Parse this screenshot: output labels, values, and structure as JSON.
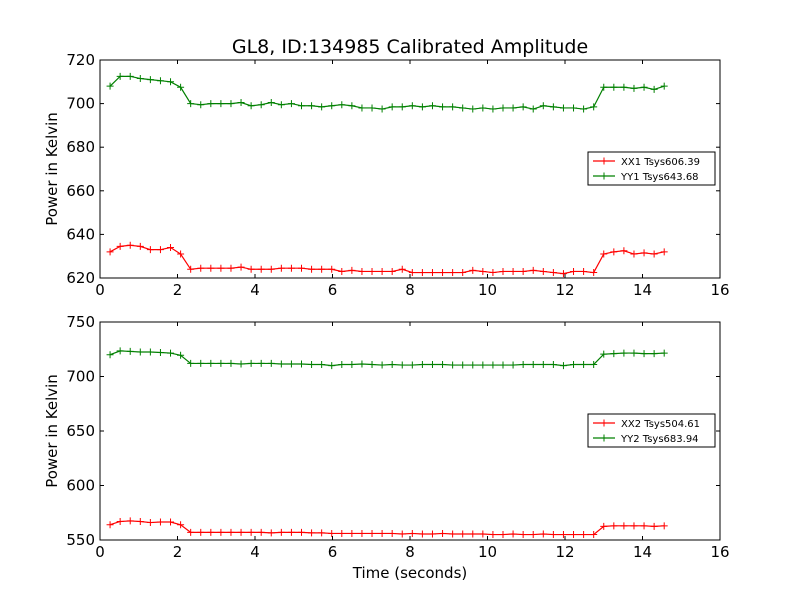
{
  "figure": {
    "title": "GL8, ID:134985 Calibrated Amplitude",
    "xlabel": "Time (seconds)"
  },
  "chart_data": [
    {
      "type": "line",
      "title": "GL8, ID:134985 Calibrated Amplitude",
      "xlabel": "",
      "ylabel": "Power in Kelvin",
      "xlim": [
        0,
        16
      ],
      "ylim": [
        620,
        720
      ],
      "xticks": [
        0,
        2,
        4,
        6,
        8,
        10,
        12,
        14,
        16
      ],
      "yticks": [
        620,
        640,
        660,
        680,
        700,
        720
      ],
      "legend_position": "right",
      "grid": false,
      "x": [
        0.26,
        0.52,
        0.78,
        1.04,
        1.3,
        1.56,
        1.82,
        2.08,
        2.34,
        2.6,
        2.86,
        3.12,
        3.38,
        3.64,
        3.9,
        4.16,
        4.42,
        4.68,
        4.94,
        5.2,
        5.46,
        5.72,
        5.98,
        6.24,
        6.5,
        6.76,
        7.02,
        7.28,
        7.54,
        7.8,
        8.06,
        8.32,
        8.58,
        8.84,
        9.1,
        9.36,
        9.62,
        9.88,
        10.14,
        10.4,
        10.66,
        10.92,
        11.18,
        11.44,
        11.7,
        11.96,
        12.22,
        12.48,
        12.74,
        13.0,
        13.26,
        13.52,
        13.78,
        14.04,
        14.3,
        14.56
      ],
      "series": [
        {
          "name": "XX1 Tsys606.39",
          "color": "#ff0000",
          "values": [
            632,
            634.5,
            635,
            634.5,
            633,
            633,
            634,
            631,
            624,
            624.5,
            624.5,
            624.5,
            624.5,
            625,
            624,
            624,
            624,
            624.5,
            624.5,
            624.5,
            624,
            624,
            624,
            623,
            623.5,
            623,
            623,
            623,
            623,
            624,
            622.5,
            622.5,
            622.5,
            622.5,
            622.5,
            622.5,
            623.5,
            623,
            622.5,
            623,
            623,
            623,
            623.5,
            623,
            622.5,
            622,
            623,
            623,
            622.5,
            631,
            632,
            632.5,
            631,
            631.5,
            631,
            632
          ]
        },
        {
          "name": "YY1 Tsys643.68",
          "color": "#008000",
          "values": [
            708,
            712.5,
            712.5,
            711.5,
            711,
            710.5,
            710,
            707.5,
            700,
            699.5,
            700,
            700,
            700,
            700.5,
            699,
            699.5,
            700.5,
            699.5,
            700,
            699,
            699,
            698.5,
            699,
            699.5,
            699,
            698,
            698,
            697.5,
            698.5,
            698.5,
            699,
            698.5,
            699,
            698.5,
            698.5,
            698,
            697.5,
            698,
            697.5,
            698,
            698,
            698.5,
            697.5,
            699,
            698.5,
            698,
            698,
            697.5,
            698.5,
            707.5,
            707.5,
            707.5,
            707,
            707.5,
            706.5,
            708
          ]
        }
      ]
    },
    {
      "type": "line",
      "title": "",
      "xlabel": "Time (seconds)",
      "ylabel": "Power in Kelvin",
      "xlim": [
        0,
        16
      ],
      "ylim": [
        550,
        750
      ],
      "xticks": [
        0,
        2,
        4,
        6,
        8,
        10,
        12,
        14,
        16
      ],
      "yticks": [
        550,
        600,
        650,
        700,
        750
      ],
      "legend_position": "right",
      "grid": false,
      "x": [
        0.26,
        0.52,
        0.78,
        1.04,
        1.3,
        1.56,
        1.82,
        2.08,
        2.34,
        2.6,
        2.86,
        3.12,
        3.38,
        3.64,
        3.9,
        4.16,
        4.42,
        4.68,
        4.94,
        5.2,
        5.46,
        5.72,
        5.98,
        6.24,
        6.5,
        6.76,
        7.02,
        7.28,
        7.54,
        7.8,
        8.06,
        8.32,
        8.58,
        8.84,
        9.1,
        9.36,
        9.62,
        9.88,
        10.14,
        10.4,
        10.66,
        10.92,
        11.18,
        11.44,
        11.7,
        11.96,
        12.22,
        12.48,
        12.74,
        13.0,
        13.26,
        13.52,
        13.78,
        14.04,
        14.3,
        14.56
      ],
      "series": [
        {
          "name": "XX2 Tsys504.61",
          "color": "#ff0000",
          "values": [
            564,
            567,
            567.5,
            567,
            566,
            566.5,
            566.5,
            564,
            557,
            557,
            557,
            557,
            557,
            557,
            557,
            557,
            556.5,
            557,
            557,
            557,
            556.5,
            556.5,
            556,
            556,
            556,
            556,
            556,
            556,
            556,
            555.5,
            556,
            555.5,
            555.5,
            556,
            555.5,
            555.5,
            555.5,
            555.5,
            555,
            555,
            555.5,
            555,
            555,
            555.5,
            555,
            555,
            555,
            555,
            555,
            562.5,
            563,
            563,
            563,
            563,
            562.5,
            563
          ]
        },
        {
          "name": "YY2 Tsys683.94",
          "color": "#008000",
          "values": [
            720,
            723.5,
            723,
            722.5,
            722.5,
            722,
            721.5,
            719.5,
            712,
            712,
            712,
            712,
            712,
            711.5,
            712,
            712,
            712,
            711.5,
            711.5,
            711.5,
            711,
            711,
            710,
            711,
            711,
            711.5,
            711,
            710.5,
            711,
            710.5,
            710.5,
            711,
            711,
            711,
            710.5,
            710.5,
            710.5,
            710.5,
            710.5,
            710.5,
            710.5,
            711,
            711,
            711,
            711,
            710,
            711,
            711,
            711,
            720.5,
            721,
            721.5,
            721.5,
            721,
            721,
            721.5
          ]
        }
      ]
    }
  ]
}
